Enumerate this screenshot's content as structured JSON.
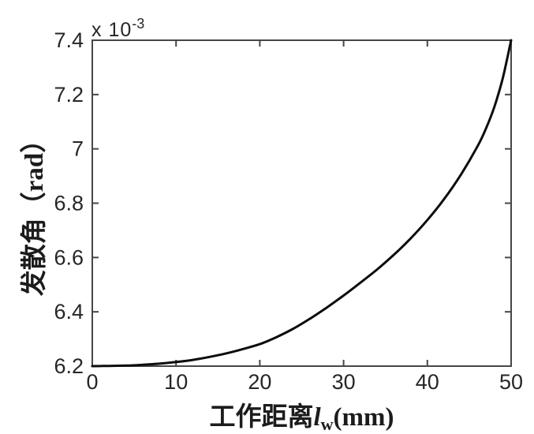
{
  "figure": {
    "background": "#ffffff",
    "frame_color": "#474747",
    "tick_color": "#474747",
    "text_color": "#262626",
    "curve_color": "#0d0d0d"
  },
  "y_axis": {
    "label_cjk": "发散角",
    "label_unit": "（rad）",
    "exponent_multiplier": "x 10",
    "exponent_power": "-3"
  },
  "x_axis": {
    "label_prefix": "工作距离",
    "label_var": "l",
    "label_var_sub": "w",
    "label_suffix": "(mm)"
  },
  "chart_data": {
    "type": "line",
    "title": "",
    "xlabel": "工作距离 l_w (mm)",
    "ylabel": "发散角（rad）",
    "y_scale_label": "x 10^-3",
    "grid": false,
    "legend_position": "none",
    "xlim": [
      0,
      50
    ],
    "ylim": [
      6.2,
      7.4
    ],
    "x_ticks": [
      0,
      10,
      20,
      30,
      40,
      50
    ],
    "x_tick_labels": [
      "0",
      "10",
      "20",
      "30",
      "40",
      "50"
    ],
    "y_ticks": [
      6.2,
      6.4,
      6.6,
      6.8,
      7.0,
      7.2,
      7.4
    ],
    "y_tick_labels": [
      "6.2",
      "6.4",
      "6.6",
      "6.8",
      "7",
      "7.2",
      "7.4"
    ],
    "units": {
      "x": "mm",
      "y": "rad",
      "y_multiplier": 0.001
    },
    "series": [
      {
        "name": "divergence-angle-vs-working-distance",
        "color": "#0d0d0d",
        "line_width": 3,
        "x": [
          0,
          2,
          4,
          6,
          8,
          10,
          12,
          14,
          16,
          18,
          20,
          22,
          24,
          26,
          28,
          30,
          32,
          34,
          36,
          38,
          40,
          42,
          44,
          46,
          47,
          48,
          49,
          50
        ],
        "y": [
          6.2,
          6.201,
          6.202,
          6.205,
          6.209,
          6.215,
          6.223,
          6.234,
          6.247,
          6.263,
          6.281,
          6.307,
          6.338,
          6.375,
          6.416,
          6.46,
          6.507,
          6.556,
          6.61,
          6.67,
          6.738,
          6.815,
          6.905,
          7.01,
          7.075,
          7.155,
          7.26,
          7.4
        ]
      }
    ]
  }
}
